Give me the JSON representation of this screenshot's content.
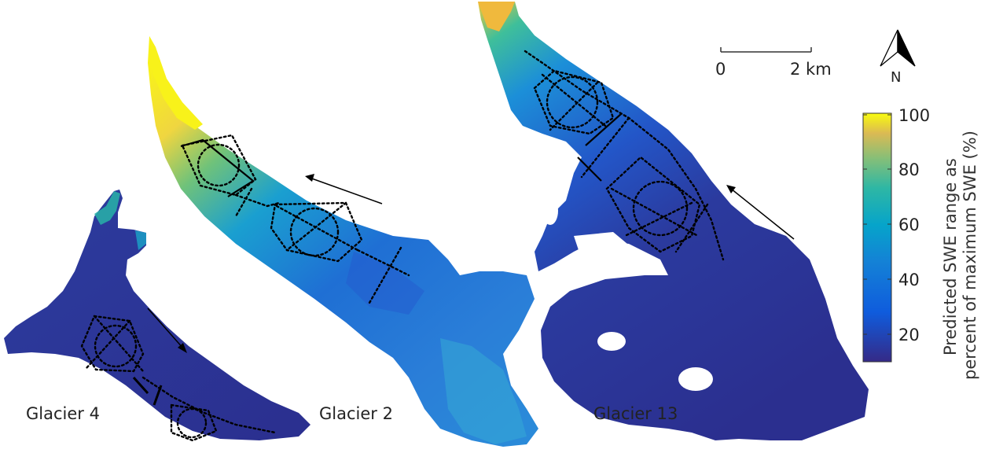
{
  "map": {
    "glaciers": [
      {
        "name": "Glacier 4"
      },
      {
        "name": "Glacier 2"
      },
      {
        "name": "Glacier 13"
      }
    ],
    "scale_bar": {
      "start_label": "0",
      "end_label": "2 km"
    },
    "north_arrow": {
      "label": "N"
    },
    "colorbar": {
      "title_line1": "Predicted SWE range as",
      "title_line2": "percent of maximum SWE (%)",
      "ticks": [
        "100",
        "80",
        "60",
        "40",
        "20"
      ],
      "colormap": "parula",
      "range": [
        10,
        100
      ]
    },
    "colors": {
      "low": "#2b2f8f",
      "mid_low": "#2f78d8",
      "mid": "#1fb7b0",
      "mid_high": "#8dc95a",
      "high": "#f2c236",
      "max": "#f8f21a"
    }
  }
}
